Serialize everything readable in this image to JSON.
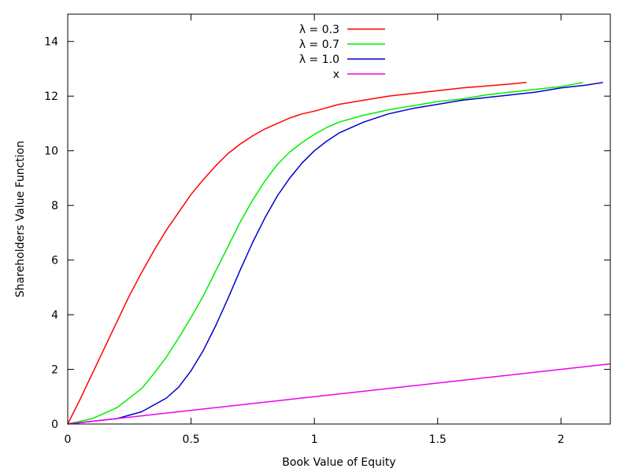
{
  "chart_data": {
    "type": "line",
    "title": "",
    "xlabel": "Book Value of Equity",
    "ylabel": "Shareholders Value Function",
    "xlim": [
      0,
      2.2
    ],
    "ylim": [
      0,
      15
    ],
    "xticks": [
      0,
      0.5,
      1,
      1.5,
      2
    ],
    "xtick_labels": [
      "0",
      "0.5",
      "1",
      "1.5",
      "2"
    ],
    "yticks": [
      0,
      2,
      4,
      6,
      8,
      10,
      12,
      14
    ],
    "ytick_labels": [
      "0",
      "2",
      "4",
      "6",
      "8",
      "10",
      "12",
      "14"
    ],
    "grid": false,
    "legend_position": "top-center",
    "series": [
      {
        "name": "λ = 0.3",
        "color": "#ff0000",
        "x": [
          0,
          0.05,
          0.1,
          0.15,
          0.2,
          0.25,
          0.3,
          0.35,
          0.4,
          0.45,
          0.5,
          0.55,
          0.6,
          0.65,
          0.7,
          0.75,
          0.8,
          0.85,
          0.9,
          0.95,
          1.0,
          1.1,
          1.2,
          1.3,
          1.4,
          1.5,
          1.6,
          1.7,
          1.8,
          1.86
        ],
        "y": [
          0,
          0.9,
          1.85,
          2.8,
          3.75,
          4.7,
          5.55,
          6.35,
          7.1,
          7.75,
          8.4,
          8.95,
          9.45,
          9.9,
          10.25,
          10.55,
          10.8,
          11.0,
          11.2,
          11.35,
          11.45,
          11.7,
          11.85,
          12.0,
          12.1,
          12.2,
          12.3,
          12.37,
          12.45,
          12.5
        ]
      },
      {
        "name": "λ = 0.7",
        "color": "#00ee00",
        "x": [
          0,
          0.1,
          0.2,
          0.3,
          0.35,
          0.4,
          0.45,
          0.5,
          0.55,
          0.6,
          0.65,
          0.7,
          0.75,
          0.8,
          0.85,
          0.9,
          0.95,
          1.0,
          1.05,
          1.1,
          1.2,
          1.3,
          1.4,
          1.5,
          1.6,
          1.7,
          1.8,
          1.9,
          2.0,
          2.09
        ],
        "y": [
          0,
          0.2,
          0.6,
          1.3,
          1.85,
          2.45,
          3.15,
          3.9,
          4.7,
          5.6,
          6.5,
          7.4,
          8.2,
          8.9,
          9.5,
          9.95,
          10.3,
          10.6,
          10.85,
          11.05,
          11.3,
          11.5,
          11.65,
          11.8,
          11.9,
          12.05,
          12.15,
          12.25,
          12.35,
          12.5
        ]
      },
      {
        "name": "λ = 1.0",
        "color": "#0000cc",
        "x": [
          0,
          0.1,
          0.2,
          0.3,
          0.4,
          0.45,
          0.5,
          0.55,
          0.6,
          0.65,
          0.7,
          0.75,
          0.8,
          0.85,
          0.9,
          0.95,
          1.0,
          1.05,
          1.1,
          1.2,
          1.3,
          1.4,
          1.5,
          1.6,
          1.7,
          1.8,
          1.9,
          2.0,
          2.1,
          2.17
        ],
        "y": [
          0,
          0.1,
          0.2,
          0.45,
          0.95,
          1.35,
          1.95,
          2.7,
          3.6,
          4.6,
          5.65,
          6.65,
          7.55,
          8.35,
          9.0,
          9.55,
          10.0,
          10.35,
          10.65,
          11.05,
          11.35,
          11.55,
          11.7,
          11.85,
          11.95,
          12.05,
          12.15,
          12.3,
          12.4,
          12.5
        ]
      },
      {
        "name": "x",
        "color": "#ee00ee",
        "x": [
          0,
          2.2
        ],
        "y": [
          0,
          2.2
        ]
      }
    ]
  }
}
